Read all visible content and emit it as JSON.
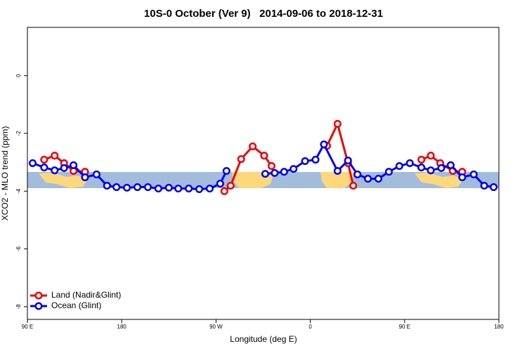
{
  "chart_data": {
    "type": "line",
    "title": "10S-0 October (Ver 9)   2014-09-06 to 2018-12-31",
    "xlabel": "Longitude (deg E)",
    "ylabel": "XCO2 - MLO trend (ppm)",
    "xlim": [
      90,
      540
    ],
    "xticks": [
      {
        "value": 90,
        "label": "90 E"
      },
      180,
      {
        "value": 270,
        "label": "90 W"
      },
      {
        "value": 360,
        "label": "0"
      },
      {
        "value": 450,
        "label": "90 E"
      },
      {
        "value": 540,
        "label": "180"
      }
    ],
    "ylim": [
      -8.44,
      1.67
    ],
    "yticks": [
      0,
      -2,
      -4,
      -6,
      -8
    ],
    "legend": "bottom-left",
    "series": [
      {
        "name": "Land (Nadir&Glint)",
        "color": "#ee0000",
        "x": [
          106,
          116,
          125,
          134,
          145,
          200,
          278,
          284,
          294,
          305,
          316,
          323,
          350,
          376,
          386,
          396,
          401,
          430,
          466,
          475,
          484,
          496,
          505
        ],
        "values": [
          -2.91,
          -2.77,
          -3.03,
          -3.3,
          -3.33,
          null,
          -4.0,
          -3.81,
          -2.89,
          -2.45,
          -2.77,
          -3.13,
          null,
          -2.43,
          -1.67,
          -3.03,
          -3.81,
          null,
          -2.91,
          -2.77,
          -3.03,
          -3.3,
          -3.33
        ]
      },
      {
        "name": "Ocean (Glint)",
        "color": "#0000ee",
        "x": [
          95,
          106,
          116,
          125,
          134,
          145,
          156,
          166,
          175,
          185,
          195,
          205,
          215,
          225,
          234,
          244,
          254,
          264,
          274,
          280,
          298,
          317,
          326,
          335,
          344,
          355,
          365,
          373,
          386,
          396,
          405,
          415,
          425,
          435,
          445,
          455,
          466,
          475,
          485,
          494,
          505,
          516,
          526,
          535
        ],
        "values": [
          -3.03,
          -3.18,
          -3.28,
          -3.2,
          -3.1,
          -3.52,
          -3.42,
          -3.81,
          -3.86,
          -3.88,
          -3.86,
          -3.86,
          -3.91,
          -3.88,
          -3.91,
          -3.91,
          -3.93,
          -3.91,
          -3.74,
          -3.3,
          null,
          -3.4,
          -3.37,
          -3.33,
          -3.23,
          -2.96,
          -2.91,
          -2.38,
          -3.3,
          -2.94,
          -3.42,
          -3.57,
          -3.57,
          -3.33,
          -3.13,
          -3.03,
          -3.18,
          -3.28,
          -3.2,
          -3.1,
          -3.52,
          -3.42,
          -3.81,
          -3.86
        ]
      }
    ]
  }
}
